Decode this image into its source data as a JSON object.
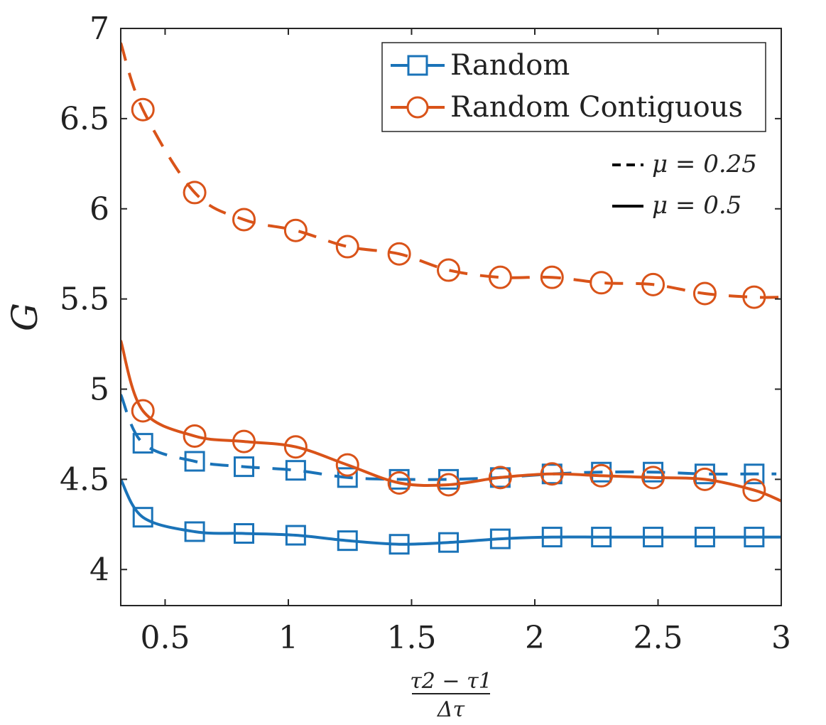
{
  "chart_data": {
    "type": "line",
    "ylabel": "G",
    "xlabel": {
      "numerator": "τ2 − τ1",
      "denominator": "Δτ"
    },
    "xlim": [
      0.32,
      3.0
    ],
    "ylim": [
      3.8,
      7.0
    ],
    "xticks": [
      0.5,
      1,
      1.5,
      2,
      2.5,
      3
    ],
    "xtick_labels": [
      "0.5",
      "1",
      "1.5",
      "2",
      "2.5",
      "3"
    ],
    "yticks": [
      4,
      4.5,
      5,
      5.5,
      6,
      6.5,
      7
    ],
    "ytick_labels": [
      "4",
      "4.5",
      "5",
      "5.5",
      "6",
      "6.5",
      "7"
    ],
    "marker_x": [
      0.41,
      0.62,
      0.82,
      1.03,
      1.24,
      1.45,
      1.65,
      1.86,
      2.07,
      2.27,
      2.48,
      2.69,
      2.89
    ],
    "series": [
      {
        "name": "Random",
        "mu": "0.25",
        "style": "dashed",
        "marker": "square",
        "color": "#1a73b8",
        "x": [
          0.32,
          0.41,
          0.62,
          0.82,
          1.03,
          1.24,
          1.45,
          1.65,
          1.86,
          2.07,
          2.27,
          2.48,
          2.69,
          2.89,
          2.98
        ],
        "y": [
          4.97,
          4.7,
          4.6,
          4.57,
          4.55,
          4.51,
          4.5,
          4.5,
          4.51,
          4.53,
          4.54,
          4.54,
          4.53,
          4.53,
          4.53
        ]
      },
      {
        "name": "Random",
        "mu": "0.5",
        "style": "solid",
        "marker": "square",
        "color": "#1a73b8",
        "x": [
          0.32,
          0.41,
          0.62,
          0.82,
          1.03,
          1.24,
          1.45,
          1.65,
          1.86,
          2.07,
          2.27,
          2.48,
          2.69,
          2.89,
          3.0
        ],
        "y": [
          4.5,
          4.29,
          4.21,
          4.2,
          4.19,
          4.16,
          4.14,
          4.15,
          4.17,
          4.18,
          4.18,
          4.18,
          4.18,
          4.18,
          4.18
        ]
      },
      {
        "name": "Random Contiguous",
        "mu": "0.25",
        "style": "dashed",
        "marker": "circle",
        "color": "#d95319",
        "x": [
          0.32,
          0.41,
          0.62,
          0.82,
          1.03,
          1.24,
          1.45,
          1.65,
          1.86,
          2.07,
          2.27,
          2.48,
          2.69,
          2.89,
          3.0
        ],
        "y": [
          6.92,
          6.55,
          6.09,
          5.94,
          5.88,
          5.79,
          5.75,
          5.66,
          5.62,
          5.62,
          5.59,
          5.58,
          5.53,
          5.51,
          5.51
        ]
      },
      {
        "name": "Random Contiguous",
        "mu": "0.5",
        "style": "solid",
        "marker": "circle",
        "color": "#d95319",
        "x": [
          0.32,
          0.41,
          0.62,
          0.82,
          1.03,
          1.24,
          1.45,
          1.65,
          1.86,
          2.07,
          2.27,
          2.48,
          2.69,
          2.89,
          3.0
        ],
        "y": [
          5.27,
          4.88,
          4.74,
          4.71,
          4.68,
          4.58,
          4.48,
          4.47,
          4.51,
          4.53,
          4.52,
          4.51,
          4.5,
          4.44,
          4.38
        ]
      }
    ],
    "legend": {
      "entries": [
        {
          "label": "Random",
          "marker": "square",
          "color": "#1a73b8"
        },
        {
          "label": "Random Contiguous",
          "marker": "circle",
          "color": "#d95319"
        }
      ],
      "placement": "top-right"
    },
    "linestyle_legend": {
      "entries": [
        {
          "label": "μ = 0.25",
          "style": "dashed"
        },
        {
          "label": "μ = 0.5",
          "style": "solid"
        }
      ],
      "placement": "top-right"
    }
  }
}
